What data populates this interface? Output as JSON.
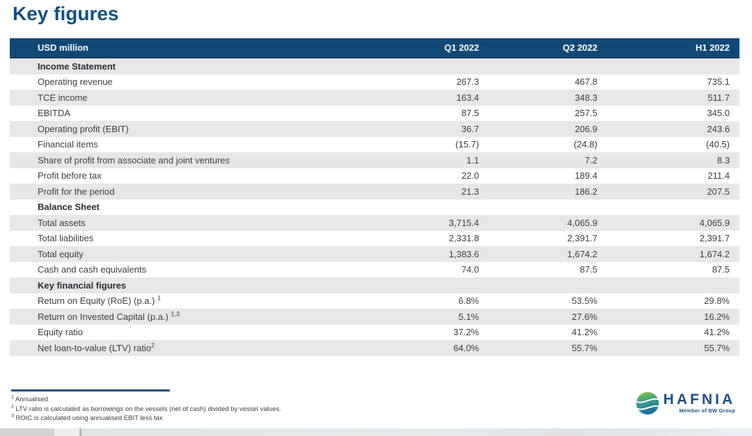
{
  "title": "Key figures",
  "table": {
    "unit_header": "USD million",
    "columns": [
      "Q1 2022",
      "Q2 2022",
      "H1 2022"
    ],
    "rows": [
      {
        "type": "section",
        "label": "Income Statement"
      },
      {
        "type": "data",
        "label": "Operating revenue",
        "values": [
          "267.3",
          "467.8",
          "735.1"
        ]
      },
      {
        "type": "data",
        "label": "TCE income",
        "values": [
          "163.4",
          "348.3",
          "511.7"
        ]
      },
      {
        "type": "data",
        "label": "EBITDA",
        "values": [
          "87.5",
          "257.5",
          "345.0"
        ]
      },
      {
        "type": "data",
        "label": "Operating profit (EBIT)",
        "values": [
          "36.7",
          "206.9",
          "243.6"
        ]
      },
      {
        "type": "data",
        "label": "Financial items",
        "values": [
          "(15.7)",
          "(24.8)",
          "(40.5)"
        ]
      },
      {
        "type": "data",
        "label": "Share of profit from associate and joint ventures",
        "values": [
          "1.1",
          "7.2",
          "8.3"
        ]
      },
      {
        "type": "data",
        "label": "Profit before tax",
        "values": [
          "22.0",
          "189.4",
          "211.4"
        ]
      },
      {
        "type": "data",
        "label": "Profit for the period",
        "values": [
          "21.3",
          "186.2",
          "207.5"
        ]
      },
      {
        "type": "section",
        "label": "Balance Sheet"
      },
      {
        "type": "data",
        "label": "Total assets",
        "values": [
          "3,715.4",
          "4,065.9",
          "4,065.9"
        ]
      },
      {
        "type": "data",
        "label": "Total liabilities",
        "values": [
          "2,331.8",
          "2,391.7",
          "2,391.7"
        ]
      },
      {
        "type": "data",
        "label": "Total equity",
        "values": [
          "1,383.6",
          "1,674.2",
          "1,674.2"
        ]
      },
      {
        "type": "data",
        "label": "Cash and cash equivalents",
        "values": [
          "74.0",
          "87.5",
          "87.5"
        ]
      },
      {
        "type": "section",
        "label": "Key financial figures"
      },
      {
        "type": "data",
        "label": "Return on Equity (RoE) (p.a.) ",
        "sup": "1",
        "values": [
          "6.8%",
          "53.5%",
          "29.8%"
        ]
      },
      {
        "type": "data",
        "label": "Return on Invested Capital (p.a.) ",
        "sup": "1,3",
        "values": [
          "5.1%",
          "27.6%",
          "16.2%"
        ]
      },
      {
        "type": "data",
        "label": "Equity ratio",
        "values": [
          "37.2%",
          "41.2%",
          "41.2%"
        ]
      },
      {
        "type": "data",
        "label": "Net loan-to-value (LTV) ratio",
        "sup": "2",
        "values": [
          "64.0%",
          "55.7%",
          "55.7%"
        ]
      }
    ]
  },
  "footnotes": [
    {
      "sup": "1",
      "text": "Annualised"
    },
    {
      "sup": "2",
      "text": "LTV ratio is calculated as borrowings on the vessels (net of cash) divided by vessel values."
    },
    {
      "sup": "3",
      "text": "ROIC is calculated using annualised EBIT less tax"
    }
  ],
  "logo": {
    "name": "HAFNIA",
    "tagline": "Member of BW Group"
  },
  "colors": {
    "header_bg": "#114976",
    "header_border": "#0b3c63",
    "stripe": "#e7e7e9",
    "title_text": "#125181",
    "logo_blue": "#1c4f87",
    "logo_green": "#8dc63f"
  }
}
